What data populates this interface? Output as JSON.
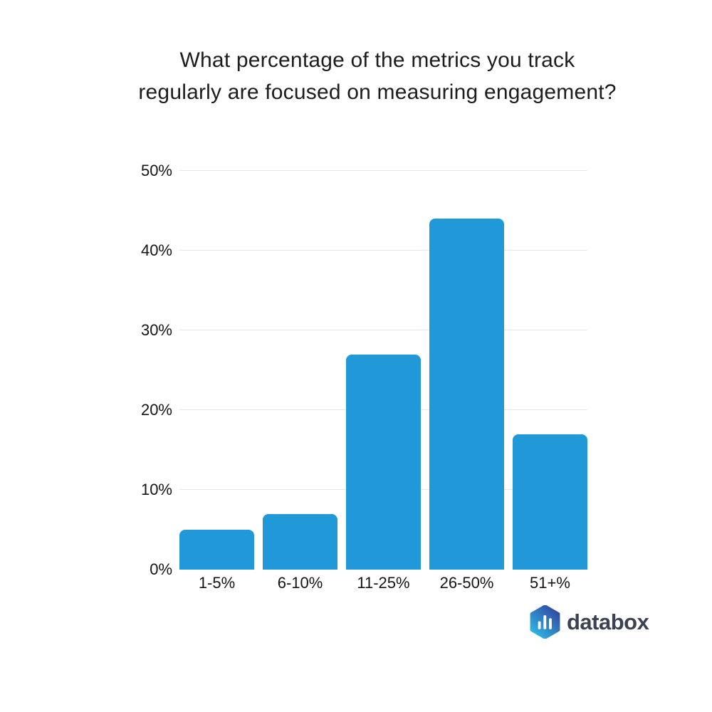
{
  "page": {
    "background_color": "#ffffff"
  },
  "title": {
    "line1": "What percentage of the metrics you track",
    "line2": "regularly are focused on measuring engagement?"
  },
  "chart_data": {
    "type": "bar",
    "title": "What percentage of the metrics you track regularly are focused on measuring engagement?",
    "categories": [
      "1-5%",
      "6-10%",
      "11-25%",
      "26-50%",
      "51+%"
    ],
    "values": [
      5,
      7,
      27,
      44,
      17
    ],
    "xlabel": "",
    "ylabel": "",
    "ylim": [
      0,
      50
    ],
    "ytick_values": [
      0,
      10,
      20,
      30,
      40,
      50
    ],
    "ytick_labels": [
      "0%",
      "10%",
      "20%",
      "30%",
      "40%",
      "50%"
    ],
    "grid": "horizontal-only",
    "legend": "none",
    "bar_color": "#2199D8",
    "gridline_color": "#e7e7e7",
    "axis_label_color": "#141414"
  },
  "branding": {
    "logo_text": "databox",
    "logo_icon": "databox-hexagon-bars-icon",
    "logo_text_color": "#3b4252",
    "logo_gradient_start": "#333F9E",
    "logo_gradient_end": "#2CC0EA"
  }
}
